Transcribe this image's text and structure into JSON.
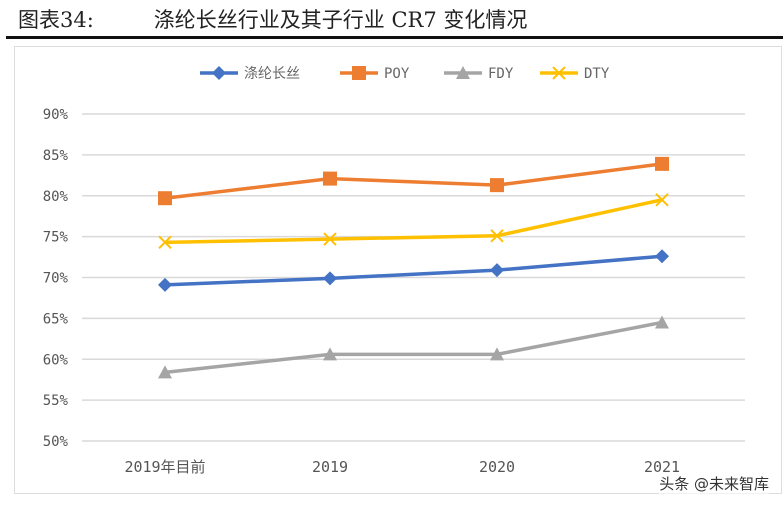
{
  "header": {
    "figure_label": "图表34:",
    "title": "涤纶长丝行业及其子行业 CR7 变化情况"
  },
  "watermark": "头条 @未来智库",
  "chart_data": {
    "type": "line",
    "title": "涤纶长丝行业及其子行业 CR7 变化情况",
    "categories": [
      "2019年目前",
      "2019",
      "2020",
      "2021"
    ],
    "yticks": [
      "50%",
      "55%",
      "60%",
      "65%",
      "70%",
      "75%",
      "80%",
      "85%",
      "90%"
    ],
    "ylim": [
      50,
      90
    ],
    "grid": true,
    "legend": "top",
    "series": [
      {
        "name": "涤纶长丝",
        "color": "#4472c4",
        "marker": "diamond",
        "values": [
          69.1,
          69.9,
          70.9,
          72.6
        ]
      },
      {
        "name": "POY",
        "color": "#ed7d31",
        "marker": "square",
        "values": [
          79.7,
          82.1,
          81.3,
          83.9
        ]
      },
      {
        "name": "FDY",
        "color": "#a5a5a5",
        "marker": "triangle",
        "values": [
          58.4,
          60.6,
          60.6,
          64.5
        ]
      },
      {
        "name": "DTY",
        "color": "#ffc000",
        "marker": "x",
        "values": [
          74.3,
          74.7,
          75.1,
          79.5
        ]
      }
    ]
  }
}
